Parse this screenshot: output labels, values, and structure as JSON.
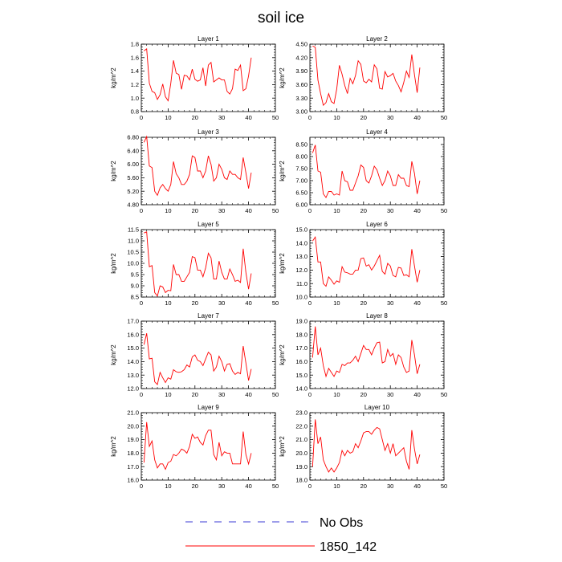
{
  "figure": {
    "title": "soil ice",
    "legend": {
      "placement": "bottom-center",
      "entries": [
        {
          "label": "No Obs",
          "color": "#3b3bd4",
          "dash": true
        },
        {
          "label": "1850_142",
          "color": "#ff0000",
          "dash": false
        }
      ]
    }
  },
  "chart_data": [
    {
      "type": "line",
      "title": "Layer 1",
      "ylabel": "kg/m^2",
      "xlim": [
        0,
        50
      ],
      "ylim": [
        0.8,
        1.8
      ],
      "xticks": [
        0,
        10,
        20,
        30,
        40,
        50
      ],
      "yticks": [
        "0.8",
        "1.0",
        "1.2",
        "1.4",
        "1.6",
        "1.8"
      ],
      "x": [
        1,
        2,
        3,
        4,
        5,
        6,
        7,
        8,
        9,
        10,
        11,
        12,
        13,
        14,
        15,
        16,
        17,
        18,
        19,
        20,
        21,
        22,
        23,
        24,
        25,
        26,
        27,
        28,
        29,
        30,
        31,
        32,
        33,
        34,
        35,
        36,
        37,
        38,
        39,
        40,
        41
      ],
      "series": [
        {
          "name": "1850_142",
          "values": [
            1.7,
            1.73,
            1.22,
            1.1,
            1.08,
            0.98,
            1.05,
            1.21,
            1.02,
            0.96,
            1.22,
            1.56,
            1.37,
            1.35,
            1.13,
            1.34,
            1.33,
            1.27,
            1.43,
            1.28,
            1.25,
            1.27,
            1.45,
            1.18,
            1.49,
            1.53,
            1.24,
            1.27,
            1.3,
            1.27,
            1.27,
            1.1,
            1.06,
            1.14,
            1.43,
            1.41,
            1.49,
            1.11,
            1.14,
            1.33,
            1.6
          ]
        }
      ]
    },
    {
      "type": "line",
      "title": "Layer 2",
      "ylabel": "kg/m^2",
      "xlim": [
        0,
        50
      ],
      "ylim": [
        3.0,
        4.5
      ],
      "xticks": [
        0,
        10,
        20,
        30,
        40,
        50
      ],
      "yticks": [
        "3.00",
        "3.30",
        "3.60",
        "3.90",
        "4.20",
        "4.50"
      ],
      "x": [
        1,
        2,
        3,
        4,
        5,
        6,
        7,
        8,
        9,
        10,
        11,
        12,
        13,
        14,
        15,
        16,
        17,
        18,
        19,
        20,
        21,
        22,
        23,
        24,
        25,
        26,
        27,
        28,
        29,
        30,
        31,
        32,
        33,
        34,
        35,
        36,
        37,
        38,
        39,
        40,
        41
      ],
      "series": [
        {
          "name": "1850_142",
          "values": [
            4.46,
            4.43,
            3.7,
            3.4,
            3.14,
            3.2,
            3.4,
            3.22,
            3.18,
            3.5,
            4.03,
            3.83,
            3.58,
            3.4,
            3.74,
            3.62,
            3.8,
            4.13,
            4.05,
            3.68,
            3.64,
            3.72,
            3.66,
            4.04,
            3.95,
            3.52,
            3.5,
            3.89,
            3.77,
            3.8,
            3.85,
            3.68,
            3.58,
            3.44,
            3.65,
            3.9,
            3.76,
            4.27,
            3.82,
            3.42,
            3.98
          ]
        }
      ]
    },
    {
      "type": "line",
      "title": "Layer 3",
      "ylabel": "kg/m^2",
      "xlim": [
        0,
        50
      ],
      "ylim": [
        4.8,
        6.8
      ],
      "xticks": [
        0,
        10,
        20,
        30,
        40,
        50
      ],
      "yticks": [
        "4.80",
        "5.20",
        "5.60",
        "6.00",
        "6.40",
        "6.80"
      ],
      "x": [
        1,
        2,
        3,
        4,
        5,
        6,
        7,
        8,
        9,
        10,
        11,
        12,
        13,
        14,
        15,
        16,
        17,
        18,
        19,
        20,
        21,
        22,
        23,
        24,
        25,
        26,
        27,
        28,
        29,
        30,
        31,
        32,
        33,
        34,
        35,
        36,
        37,
        38,
        39,
        40,
        41
      ],
      "series": [
        {
          "name": "1850_142",
          "values": [
            6.65,
            6.82,
            5.95,
            5.9,
            5.2,
            5.08,
            5.3,
            5.4,
            5.28,
            5.2,
            5.4,
            6.08,
            5.72,
            5.6,
            5.4,
            5.4,
            5.5,
            5.7,
            6.25,
            6.2,
            5.8,
            5.8,
            5.6,
            5.8,
            6.25,
            6.0,
            5.5,
            5.6,
            6.0,
            5.85,
            5.6,
            5.55,
            5.8,
            5.7,
            5.7,
            5.6,
            5.55,
            6.2,
            5.75,
            5.28,
            5.75
          ]
        }
      ]
    },
    {
      "type": "line",
      "title": "Layer 4",
      "ylabel": "kg/m^2",
      "xlim": [
        0,
        50
      ],
      "ylim": [
        6.0,
        8.8
      ],
      "xticks": [
        0,
        10,
        20,
        30,
        40,
        50
      ],
      "yticks": [
        "6.00",
        "6.50",
        "7.00",
        "7.50",
        "8.00",
        "8.50"
      ],
      "x": [
        1,
        2,
        3,
        4,
        5,
        6,
        7,
        8,
        9,
        10,
        11,
        12,
        13,
        14,
        15,
        16,
        17,
        18,
        19,
        20,
        21,
        22,
        23,
        24,
        25,
        26,
        27,
        28,
        29,
        30,
        31,
        32,
        33,
        34,
        35,
        36,
        37,
        38,
        39,
        40,
        41
      ],
      "series": [
        {
          "name": "1850_142",
          "values": [
            8.15,
            8.48,
            7.4,
            7.35,
            6.45,
            6.3,
            6.55,
            6.55,
            6.4,
            6.45,
            6.4,
            7.4,
            7.0,
            6.95,
            6.6,
            6.6,
            6.9,
            7.2,
            7.65,
            7.55,
            7.0,
            6.9,
            7.2,
            7.6,
            7.45,
            7.1,
            6.8,
            7.0,
            7.4,
            7.2,
            6.8,
            6.8,
            7.25,
            7.1,
            7.1,
            6.8,
            6.75,
            7.8,
            7.3,
            6.45,
            7.0
          ]
        }
      ]
    },
    {
      "type": "line",
      "title": "Layer 5",
      "ylabel": "kg/m^2",
      "xlim": [
        0,
        50
      ],
      "ylim": [
        8.5,
        11.5
      ],
      "xticks": [
        0,
        10,
        20,
        30,
        40,
        50
      ],
      "yticks": [
        "8.5",
        "9.0",
        "9.5",
        "10.0",
        "10.5",
        "11.0",
        "11.5"
      ],
      "x": [
        1,
        2,
        3,
        4,
        5,
        6,
        7,
        8,
        9,
        10,
        11,
        12,
        13,
        14,
        15,
        16,
        17,
        18,
        19,
        20,
        21,
        22,
        23,
        24,
        25,
        26,
        27,
        28,
        29,
        30,
        31,
        32,
        33,
        34,
        35,
        36,
        37,
        38,
        39,
        40,
        41
      ],
      "series": [
        {
          "name": "1850_142",
          "values": [
            11.35,
            11.4,
            9.85,
            9.9,
            8.7,
            8.55,
            9.0,
            8.95,
            8.7,
            8.8,
            8.78,
            9.95,
            9.5,
            9.5,
            9.2,
            9.2,
            9.4,
            9.6,
            10.3,
            10.25,
            9.7,
            9.7,
            9.4,
            9.8,
            10.45,
            10.25,
            9.3,
            9.3,
            10.1,
            9.6,
            9.3,
            9.3,
            9.75,
            9.5,
            9.2,
            9.25,
            9.15,
            10.65,
            9.6,
            8.85,
            9.55
          ]
        }
      ]
    },
    {
      "type": "line",
      "title": "Layer 6",
      "ylabel": "kg/m^2",
      "xlim": [
        0,
        50
      ],
      "ylim": [
        10.0,
        15.0
      ],
      "xticks": [
        0,
        10,
        20,
        30,
        40,
        50
      ],
      "yticks": [
        "10.0",
        "11.0",
        "12.0",
        "13.0",
        "14.0",
        "15.0"
      ],
      "x": [
        1,
        2,
        3,
        4,
        5,
        6,
        7,
        8,
        9,
        10,
        11,
        12,
        13,
        14,
        15,
        16,
        17,
        18,
        19,
        20,
        21,
        22,
        23,
        24,
        25,
        26,
        27,
        28,
        29,
        30,
        31,
        32,
        33,
        34,
        35,
        36,
        37,
        38,
        39,
        40,
        41
      ],
      "series": [
        {
          "name": "1850_142",
          "values": [
            14.15,
            14.45,
            12.6,
            12.6,
            11.0,
            10.8,
            11.5,
            11.25,
            10.95,
            11.2,
            11.1,
            12.25,
            11.85,
            11.8,
            11.7,
            11.7,
            12.0,
            12.0,
            12.85,
            12.9,
            12.3,
            12.4,
            12.0,
            12.3,
            12.7,
            13.1,
            11.9,
            11.7,
            12.5,
            12.3,
            11.6,
            11.5,
            12.2,
            12.15,
            11.6,
            11.65,
            11.5,
            13.55,
            12.3,
            11.1,
            12.0
          ]
        }
      ]
    },
    {
      "type": "line",
      "title": "Layer 7",
      "ylabel": "kg/m^2",
      "xlim": [
        0,
        50
      ],
      "ylim": [
        12.0,
        17.0
      ],
      "xticks": [
        0,
        10,
        20,
        30,
        40,
        50
      ],
      "yticks": [
        "12.0",
        "13.0",
        "14.0",
        "15.0",
        "16.0",
        "17.0"
      ],
      "x": [
        1,
        2,
        3,
        4,
        5,
        6,
        7,
        8,
        9,
        10,
        11,
        12,
        13,
        14,
        15,
        16,
        17,
        18,
        19,
        20,
        21,
        22,
        23,
        24,
        25,
        26,
        27,
        28,
        29,
        30,
        31,
        32,
        33,
        34,
        35,
        36,
        37,
        38,
        39,
        40,
        41
      ],
      "series": [
        {
          "name": "1850_142",
          "values": [
            15.25,
            16.1,
            14.2,
            14.25,
            12.5,
            12.3,
            13.2,
            12.8,
            12.45,
            12.8,
            12.7,
            13.4,
            13.25,
            13.2,
            13.25,
            13.4,
            13.75,
            13.6,
            14.35,
            14.5,
            14.1,
            14.0,
            13.7,
            14.2,
            14.7,
            14.5,
            13.3,
            13.6,
            14.4,
            14.0,
            13.3,
            13.8,
            13.85,
            13.3,
            13.05,
            13.2,
            13.1,
            15.15,
            13.9,
            12.6,
            13.45
          ]
        }
      ]
    },
    {
      "type": "line",
      "title": "Layer 8",
      "ylabel": "kg/m^2",
      "xlim": [
        0,
        50
      ],
      "ylim": [
        14.0,
        19.0
      ],
      "xticks": [
        0,
        10,
        20,
        30,
        40,
        50
      ],
      "yticks": [
        "14.0",
        "15.0",
        "16.0",
        "17.0",
        "18.0",
        "19.0"
      ],
      "x": [
        1,
        2,
        3,
        4,
        5,
        6,
        7,
        8,
        9,
        10,
        11,
        12,
        13,
        14,
        15,
        16,
        17,
        18,
        19,
        20,
        21,
        22,
        23,
        24,
        25,
        26,
        27,
        28,
        29,
        30,
        31,
        32,
        33,
        34,
        35,
        36,
        37,
        38,
        39,
        40,
        41
      ],
      "series": [
        {
          "name": "1850_142",
          "values": [
            16.3,
            18.6,
            16.5,
            17.0,
            15.7,
            14.9,
            15.5,
            15.2,
            14.9,
            15.3,
            15.2,
            15.8,
            15.7,
            15.9,
            15.9,
            16.1,
            16.4,
            16.0,
            16.6,
            17.2,
            16.9,
            16.9,
            16.5,
            17.0,
            17.4,
            17.45,
            15.9,
            16.0,
            16.9,
            16.4,
            16.6,
            15.8,
            16.5,
            16.3,
            15.6,
            15.2,
            15.3,
            17.6,
            16.5,
            15.1,
            15.8
          ]
        }
      ]
    },
    {
      "type": "line",
      "title": "Layer 9",
      "ylabel": "kg/m^2",
      "xlim": [
        0,
        50
      ],
      "ylim": [
        16.0,
        21.0
      ],
      "xticks": [
        0,
        10,
        20,
        30,
        40,
        50
      ],
      "yticks": [
        "16.0",
        "17.0",
        "18.0",
        "19.0",
        "20.0",
        "21.0"
      ],
      "x": [
        1,
        2,
        3,
        4,
        5,
        6,
        7,
        8,
        9,
        10,
        11,
        12,
        13,
        14,
        15,
        16,
        17,
        18,
        19,
        20,
        21,
        22,
        23,
        24,
        25,
        26,
        27,
        28,
        29,
        30,
        31,
        32,
        33,
        34,
        35,
        36,
        37,
        38,
        39,
        40,
        41
      ],
      "series": [
        {
          "name": "1850_142",
          "values": [
            17.3,
            20.3,
            18.5,
            18.9,
            17.5,
            16.9,
            17.2,
            17.2,
            16.8,
            17.3,
            17.4,
            17.9,
            17.8,
            18.0,
            18.3,
            18.2,
            18.0,
            18.5,
            19.4,
            19.1,
            19.2,
            18.8,
            18.6,
            19.3,
            19.7,
            19.7,
            17.9,
            17.5,
            18.8,
            17.8,
            18.1,
            18.0,
            18.0,
            17.2,
            17.2,
            17.2,
            17.2,
            19.6,
            17.9,
            17.2,
            18.0
          ]
        }
      ]
    },
    {
      "type": "line",
      "title": "Layer 10",
      "ylabel": "kg/m^2",
      "xlim": [
        0,
        50
      ],
      "ylim": [
        18.0,
        23.0
      ],
      "xticks": [
        0,
        10,
        20,
        30,
        40,
        50
      ],
      "yticks": [
        "18.0",
        "19.0",
        "20.0",
        "21.0",
        "22.0",
        "23.0"
      ],
      "x": [
        1,
        2,
        3,
        4,
        5,
        6,
        7,
        8,
        9,
        10,
        11,
        12,
        13,
        14,
        15,
        16,
        17,
        18,
        19,
        20,
        21,
        22,
        23,
        24,
        25,
        26,
        27,
        28,
        29,
        30,
        31,
        32,
        33,
        34,
        35,
        36,
        37,
        38,
        39,
        40,
        41
      ],
      "series": [
        {
          "name": "1850_142",
          "values": [
            19.0,
            22.5,
            20.7,
            21.2,
            19.5,
            19.0,
            18.6,
            18.9,
            18.6,
            18.9,
            19.3,
            20.2,
            19.8,
            20.2,
            20.0,
            20.1,
            20.7,
            20.4,
            20.9,
            21.5,
            21.6,
            21.6,
            21.4,
            21.7,
            21.9,
            21.8,
            21.0,
            20.2,
            20.7,
            20.0,
            20.7,
            19.8,
            20.0,
            20.2,
            20.4,
            19.4,
            18.8,
            21.7,
            20.3,
            19.2,
            19.9
          ]
        }
      ]
    }
  ]
}
